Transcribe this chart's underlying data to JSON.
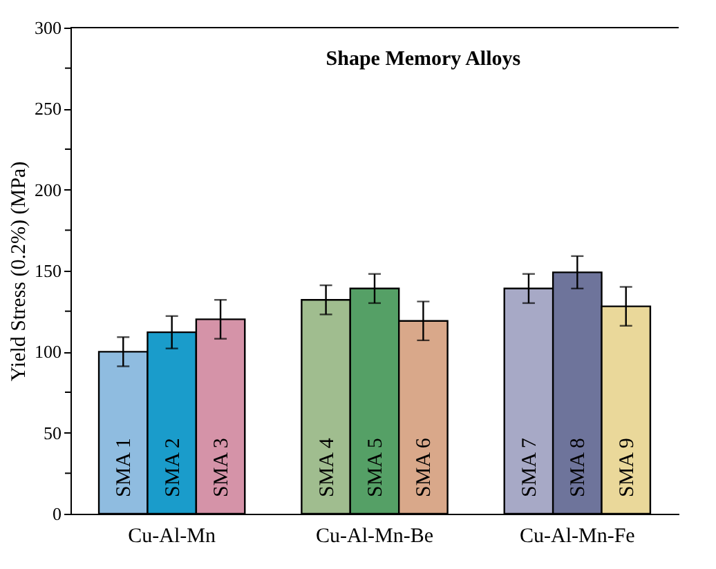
{
  "chart_data": {
    "type": "bar",
    "title": "Shape Memory Alloys",
    "ylabel": "Yield Stress (0.2%) (MPa)",
    "categories": [
      "Cu-Al-Mn",
      "Cu-Al-Mn-Be",
      "Cu-Al-Mn-Fe"
    ],
    "series": [
      {
        "colors": [
          "#8fbce0",
          "#a0bd8f",
          "#a7a9c6"
        ],
        "values": [
          100,
          132,
          139
        ],
        "errors": [
          9,
          9,
          9
        ],
        "value_labels": [
          "SMA 1",
          "SMA 4",
          "SMA 7"
        ]
      },
      {
        "colors": [
          "#1a9ccb",
          "#55a066",
          "#6e749b"
        ],
        "values": [
          112,
          139,
          149
        ],
        "errors": [
          10,
          9,
          10
        ],
        "value_labels": [
          "SMA 2",
          "SMA 5",
          "SMA 8"
        ]
      },
      {
        "colors": [
          "#d593a8",
          "#d9a88a",
          "#ead89a"
        ],
        "values": [
          120,
          119,
          128
        ],
        "errors": [
          12,
          12,
          12
        ],
        "value_labels": [
          "SMA 3",
          "SMA 6",
          "SMA 9"
        ]
      }
    ],
    "ylim": [
      0,
      300
    ],
    "yticks": [
      0,
      {
        "value": 25,
        "label": null
      },
      50,
      {
        "value": 75,
        "label": null
      },
      100,
      {
        "value": 125,
        "label": null
      },
      150,
      {
        "value": 175,
        "label": null
      },
      200,
      {
        "value": 225,
        "label": null
      },
      250,
      {
        "value": 275,
        "label": null
      },
      300
    ],
    "grid": false
  }
}
